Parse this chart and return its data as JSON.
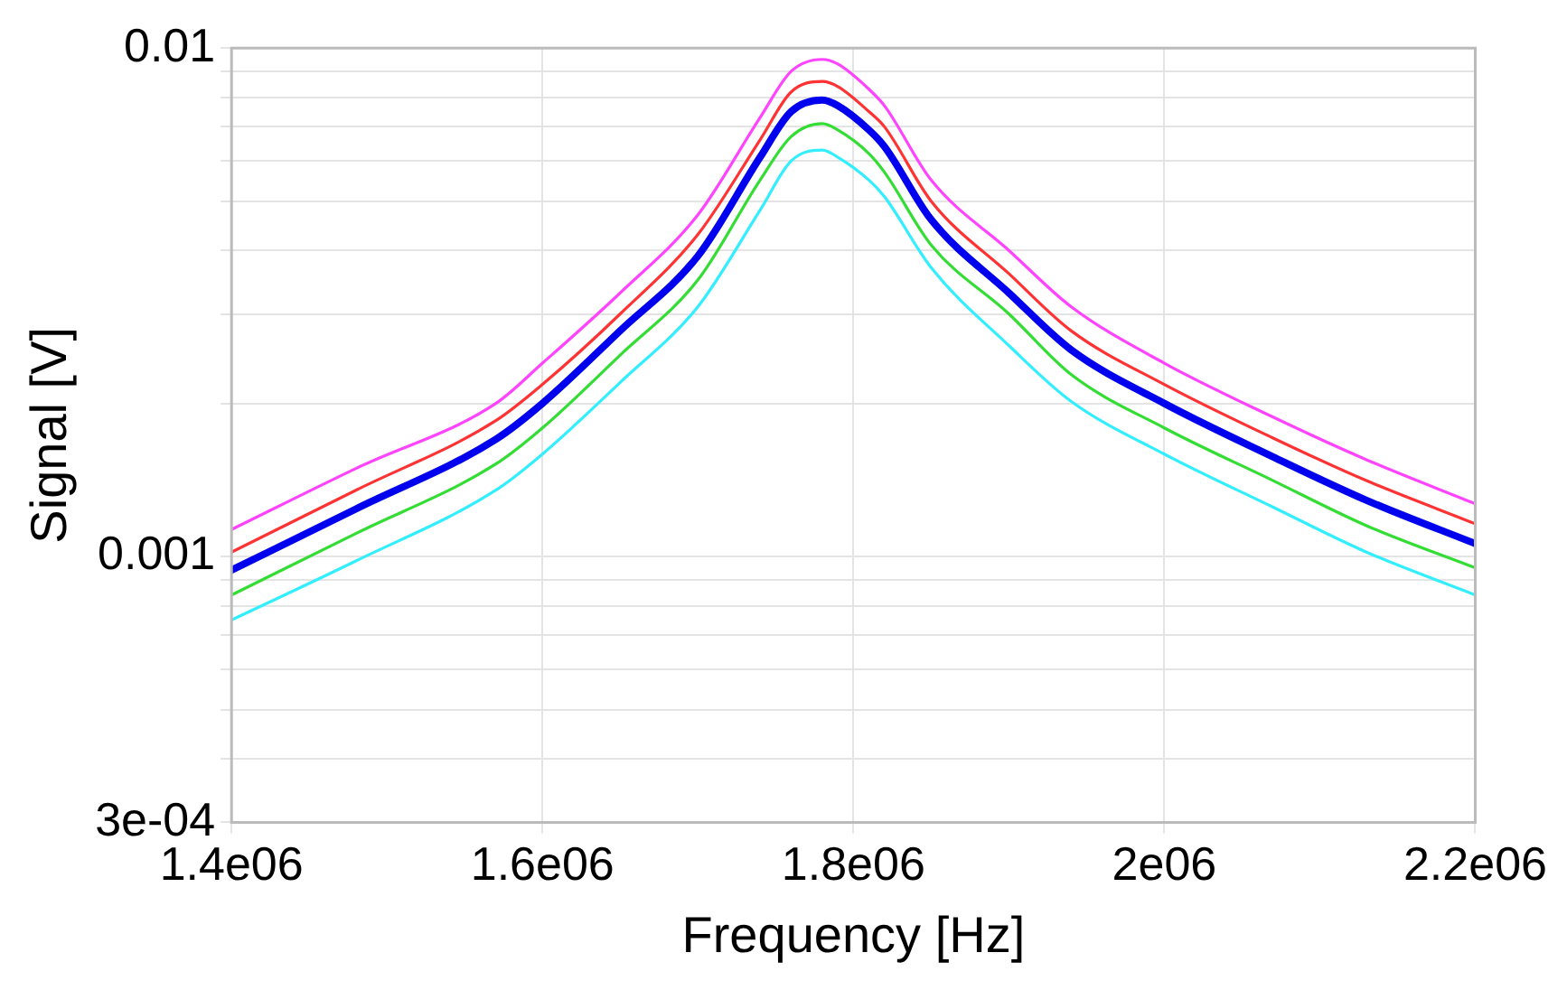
{
  "chart_data": {
    "type": "line",
    "xlabel": "Frequency [Hz]",
    "ylabel": "Signal [V]",
    "x": [
      1400000,
      1480000,
      1570000,
      1600000,
      1650000,
      1700000,
      1740000,
      1760000,
      1780000,
      1790000,
      1810000,
      1820000,
      1850000,
      1900000,
      1940000,
      2000000,
      2070000,
      2130000,
      2200000
    ],
    "series": [
      {
        "color": "#ff44ff",
        "values": [
          0.00113,
          0.00149,
          0.002,
          0.0024,
          0.0033,
          0.0047,
          0.0073,
          0.009,
          0.0095,
          0.0093,
          0.0083,
          0.0077,
          0.0055,
          0.004,
          0.0031,
          0.0024,
          0.00188,
          0.00155,
          0.00127
        ]
      },
      {
        "color": "#ff3333",
        "values": [
          0.00102,
          0.00135,
          0.00185,
          0.00218,
          0.003,
          0.0043,
          0.0066,
          0.0082,
          0.0086,
          0.0084,
          0.0075,
          0.007,
          0.005,
          0.0036,
          0.00278,
          0.00218,
          0.00171,
          0.00141,
          0.00116
        ]
      },
      {
        "color": "#0000ee",
        "values": [
          0.00094,
          0.00124,
          0.0017,
          0.002,
          0.00278,
          0.0039,
          0.0061,
          0.0075,
          0.0079,
          0.0077,
          0.0069,
          0.0064,
          0.0046,
          0.0033,
          0.00255,
          0.002,
          0.00157,
          0.00129,
          0.00106
        ]
      },
      {
        "color": "#33dd33",
        "values": [
          0.00084,
          0.00111,
          0.00152,
          0.00179,
          0.00249,
          0.0035,
          0.0055,
          0.0067,
          0.0071,
          0.0069,
          0.0062,
          0.0057,
          0.0041,
          0.003,
          0.00228,
          0.00179,
          0.00141,
          0.00115,
          0.00095
        ]
      },
      {
        "color": "#33eeff",
        "values": [
          0.00075,
          0.00098,
          0.00135,
          0.00159,
          0.0022,
          0.0031,
          0.0048,
          0.006,
          0.0063,
          0.0061,
          0.0055,
          0.0051,
          0.0037,
          0.0026,
          0.00202,
          0.00159,
          0.00125,
          0.00102,
          0.00084
        ]
      }
    ],
    "xlim": [
      1400000,
      2200000
    ],
    "xticks": [
      {
        "value": 1400000,
        "label": "1.4e06"
      },
      {
        "value": 1600000,
        "label": "1.6e06"
      },
      {
        "value": 1800000,
        "label": "1.8e06"
      },
      {
        "value": 2000000,
        "label": "2e06"
      },
      {
        "value": 2200000,
        "label": "2.2e06"
      }
    ],
    "ylim": [
      0.0003,
      0.01
    ],
    "log": "y",
    "yticks": [
      {
        "value": 0.0003,
        "label": "3e-04"
      },
      {
        "value": 0.0004,
        "label": null
      },
      {
        "value": 0.0005,
        "label": null
      },
      {
        "value": 0.0006,
        "label": null
      },
      {
        "value": 0.0007,
        "label": null
      },
      {
        "value": 0.0008,
        "label": null
      },
      {
        "value": 0.0009,
        "label": null
      },
      0.001,
      {
        "value": 0.002,
        "label": null
      },
      {
        "value": 0.003,
        "label": null
      },
      {
        "value": 0.004,
        "label": null
      },
      {
        "value": 0.005,
        "label": null
      },
      {
        "value": 0.006,
        "label": null
      },
      {
        "value": 0.007,
        "label": null
      },
      {
        "value": 0.008,
        "label": null
      },
      {
        "value": 0.009,
        "label": null
      },
      0.01
    ],
    "grid": true,
    "legend": false,
    "marker": "none",
    "line_style": "solid"
  }
}
